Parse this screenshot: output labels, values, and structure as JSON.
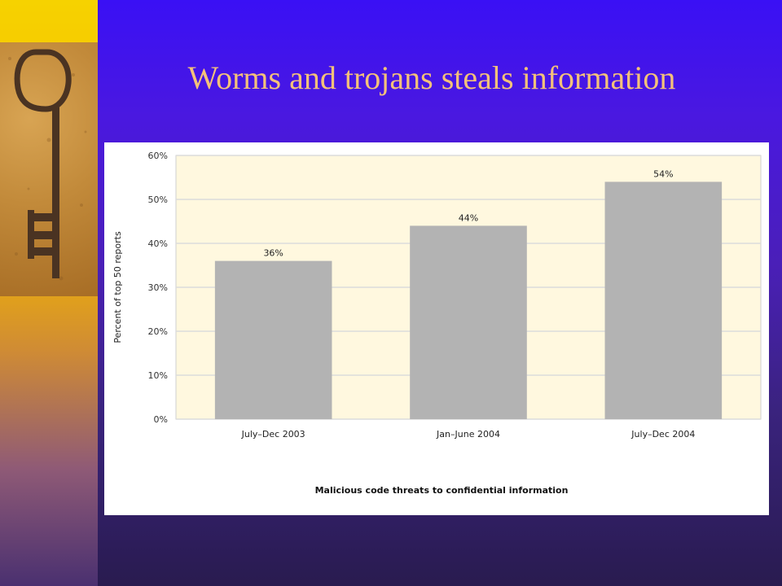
{
  "slide": {
    "title": "Worms and trojans steals information",
    "colors": {
      "title": "#f4c17a",
      "background": "#4a18e0",
      "sidebar": "#f4b800"
    },
    "decoration": "key-photo"
  },
  "chart_data": {
    "type": "bar",
    "categories": [
      "July–Dec 2003",
      "Jan–June 2004",
      "July–Dec 2004"
    ],
    "values": [
      36,
      44,
      54
    ],
    "data_labels": [
      "36%",
      "44%",
      "54%"
    ],
    "ylabel": "Percent of top 50 reports",
    "xlabel": "",
    "caption": "Malicious code threats to confidential information",
    "ylim": [
      0,
      60
    ],
    "yticks": [
      "0%",
      "10%",
      "20%",
      "30%",
      "40%",
      "50%",
      "60%"
    ],
    "grid": true,
    "colors": {
      "bar": "#b3b3b3",
      "plot_bg": "#fff8df",
      "grid": "#dcdcdc"
    }
  }
}
